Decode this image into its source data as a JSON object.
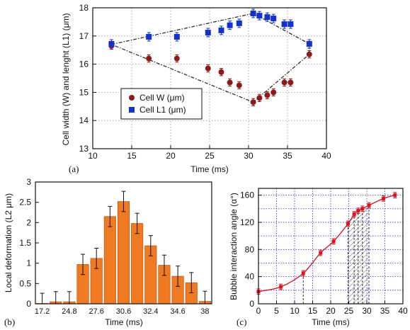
{
  "chart_data": [
    {
      "panel": "(a)",
      "type": "scatter",
      "xlabel": "Time (ms)",
      "ylabel": "Cell width (W) and lenght (L1) (μm)",
      "xlim": [
        10,
        40
      ],
      "ylim": [
        13,
        18
      ],
      "xticks": [
        "10",
        "15",
        "20",
        "25",
        "30",
        "35",
        "40"
      ],
      "yticks": [
        "13",
        "14",
        "15",
        "16",
        "17",
        "18"
      ],
      "grid": true,
      "legend_position": "lower-left",
      "series": [
        {
          "name": "Cell W (μm)",
          "color": "#8b1a1a",
          "marker": "circle",
          "x": [
            12.4,
            17.2,
            20.8,
            24.8,
            26.5,
            27.6,
            28.8,
            30.6,
            31.4,
            32.4,
            33.2,
            34.6,
            35.4,
            37.8
          ],
          "y": [
            16.65,
            16.2,
            16.2,
            15.85,
            15.72,
            15.35,
            15.25,
            14.65,
            14.8,
            14.9,
            15.0,
            15.35,
            15.35,
            16.35
          ],
          "err": [
            0.12,
            0.13,
            0.13,
            0.13,
            0.13,
            0.13,
            0.13,
            0.13,
            0.13,
            0.13,
            0.13,
            0.13,
            0.13,
            0.13
          ]
        },
        {
          "name": "Cell L1 (μm)",
          "color": "#1432c8",
          "marker": "square",
          "x": [
            12.4,
            17.2,
            20.8,
            24.8,
            26.5,
            27.6,
            28.8,
            30.6,
            31.4,
            32.4,
            33.2,
            34.6,
            35.4,
            37.8
          ],
          "y": [
            16.72,
            16.97,
            16.97,
            17.12,
            17.2,
            17.38,
            17.45,
            17.8,
            17.72,
            17.67,
            17.62,
            17.42,
            17.42,
            16.72
          ],
          "err": [
            0.15,
            0.15,
            0.15,
            0.15,
            0.15,
            0.15,
            0.15,
            0.15,
            0.15,
            0.15,
            0.15,
            0.15,
            0.15,
            0.15
          ]
        }
      ],
      "dashed_outline": [
        [
          12.4,
          16.7
        ],
        [
          30.6,
          17.8
        ],
        [
          37.8,
          16.72
        ],
        [
          37.8,
          16.35
        ],
        [
          30.6,
          14.65
        ],
        [
          12.4,
          16.7
        ]
      ]
    },
    {
      "panel": "(b)",
      "type": "bar",
      "xlabel": "Time (ms)",
      "ylabel": "Local deformation (L2 μm)",
      "ylim": [
        0,
        3
      ],
      "yticks": [
        "0",
        "0.5",
        "1",
        "1.5",
        "2",
        "2.5",
        "3"
      ],
      "color": "#f07a22",
      "categories": [
        "17.2",
        "",
        "24.8",
        "",
        "27.6",
        "",
        "30.6",
        "",
        "32.4",
        "",
        "34.6",
        "",
        "38"
      ],
      "xticks": [
        "17.2",
        "24.8",
        "27.6",
        "30.6",
        "32.4",
        "34.6",
        "38"
      ],
      "values": [
        0.01,
        0.05,
        0.05,
        0.97,
        1.12,
        2.15,
        2.52,
        1.98,
        1.43,
        0.95,
        0.68,
        0.52,
        0.06
      ],
      "errors": [
        0.25,
        0.25,
        0.25,
        0.25,
        0.25,
        0.25,
        0.25,
        0.25,
        0.25,
        0.25,
        0.25,
        0.25,
        0.25
      ]
    },
    {
      "panel": "(c)",
      "type": "line",
      "xlabel": "Time (ms)",
      "ylabel": "Bubble interaction angle (α°)",
      "xlim": [
        0,
        40
      ],
      "ylim": [
        0,
        170
      ],
      "xticks": [
        "0",
        "5",
        "10",
        "15",
        "20",
        "25",
        "30",
        "35",
        "40"
      ],
      "yticks": [
        "0",
        "40",
        "80",
        "120",
        "160"
      ],
      "grid": true,
      "series": [
        {
          "color": "#d4141e",
          "x": [
            0,
            6.2,
            12.4,
            17.2,
            20.8,
            24.8,
            26.5,
            27.6,
            28.8,
            30.6,
            34.6,
            37.8
          ],
          "y": [
            18,
            25,
            45,
            75,
            92,
            118,
            132,
            137,
            140,
            145,
            155,
            160
          ],
          "err": [
            4,
            4,
            4,
            4,
            4,
            4,
            4,
            4,
            4,
            4,
            4,
            4
          ]
        }
      ],
      "vlines_x": [
        12.4,
        24.8,
        26.5,
        27.6,
        28.8,
        30.6
      ],
      "hatched_range": [
        24.8,
        30.6
      ]
    }
  ]
}
